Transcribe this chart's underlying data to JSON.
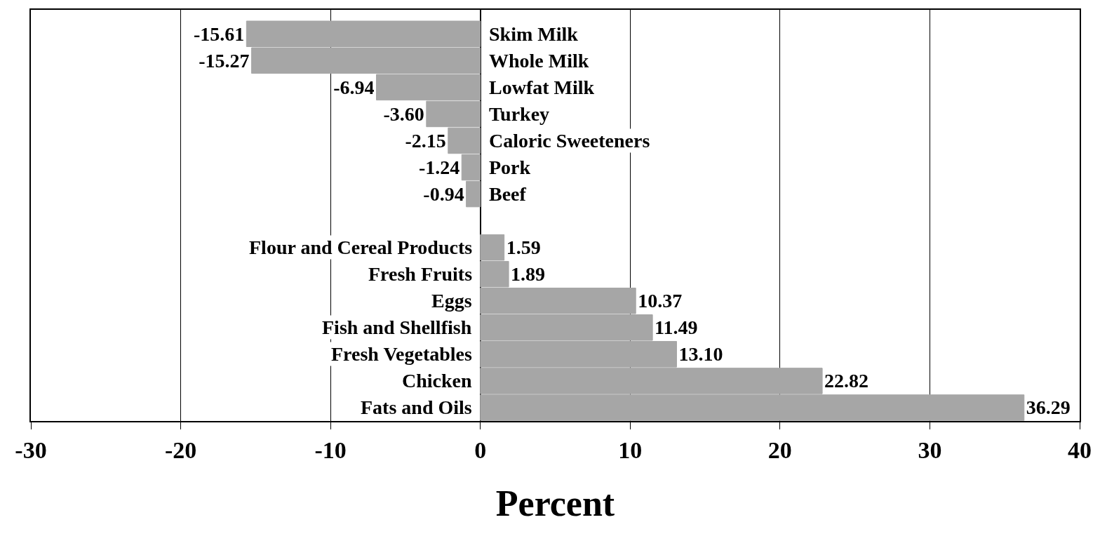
{
  "chart_data": {
    "type": "bar",
    "orientation": "horizontal",
    "xlabel": "Percent",
    "categories": [
      "Skim Milk",
      "Whole Milk",
      "Lowfat Milk",
      "Turkey",
      "Caloric Sweeteners",
      "Pork",
      "Beef",
      null,
      "Flour and Cereal Products",
      "Fresh Fruits",
      "Eggs",
      "Fish and Shellfish",
      "Fresh Vegetables",
      "Chicken",
      "Fats and Oils"
    ],
    "values": [
      -15.61,
      -15.27,
      -6.94,
      -3.6,
      -2.15,
      -1.24,
      -0.94,
      null,
      1.59,
      1.89,
      10.37,
      11.49,
      13.1,
      22.82,
      36.29
    ],
    "value_labels": [
      "-15.61",
      "-15.27",
      "-6.94",
      "-3.60",
      "-2.15",
      "-1.24",
      "-0.94",
      null,
      "1.59",
      "1.89",
      "10.37",
      "11.49",
      "13.10",
      "22.82",
      "36.29"
    ],
    "color": "#a6a6a6",
    "xlim": [
      -30,
      40
    ],
    "xticks": [
      -30,
      -20,
      -10,
      0,
      10,
      20,
      30,
      40
    ],
    "grid": "x",
    "tick_labels": "x",
    "legend": false
  }
}
